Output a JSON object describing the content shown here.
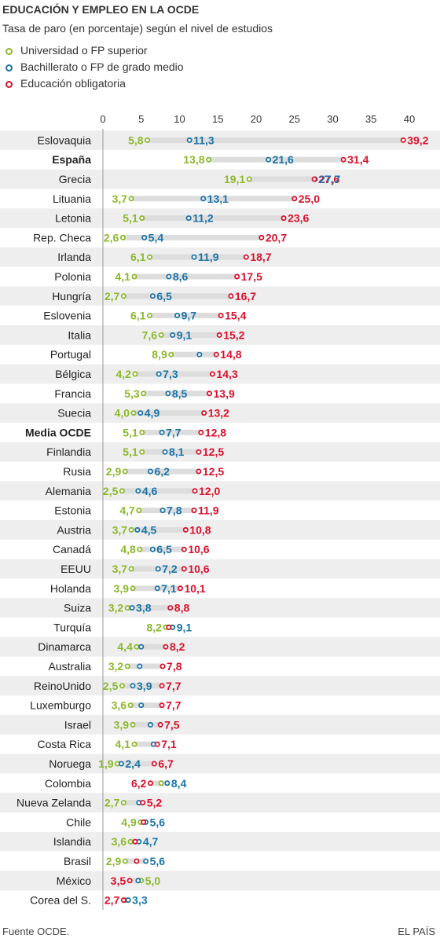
{
  "header": {
    "title": "EDUCACIÓN Y EMPLEO EN LA OCDE",
    "subtitle": "Tasa de paro (en porcentaje) según el nivel de estudios"
  },
  "legend": [
    {
      "label": "Universidad o FP superior",
      "color": "#8cb82c"
    },
    {
      "label": "Bachillerato o FP de grado medio",
      "color": "#1a73a8"
    },
    {
      "label": "Educación obligatoria",
      "color": "#d9102a"
    }
  ],
  "footer": {
    "source": "Fuente OCDE.",
    "brand": "EL PAÍS"
  },
  "chart_data": {
    "type": "dot-range",
    "xlim": [
      0,
      40
    ],
    "xticks": [
      "0",
      "5",
      "10",
      "15",
      "20",
      "25",
      "30",
      "35",
      "40"
    ],
    "stripe_color": "#eeeeee",
    "range_color": "#dddddd",
    "series": [
      {
        "name": "Universidad o FP superior",
        "color": "#8cb82c"
      },
      {
        "name": "Bachillerato o FP de grado medio",
        "color": "#1a73a8"
      },
      {
        "name": "Educación obligatoria",
        "color": "#d9102a"
      }
    ],
    "rows": [
      {
        "country": "Eslovaquia",
        "bold": false,
        "values": [
          5.8,
          11.3,
          39.2
        ],
        "labels": [
          "5,8",
          "11,3",
          "39,2"
        ]
      },
      {
        "country": "España",
        "bold": true,
        "values": [
          13.8,
          21.6,
          31.4
        ],
        "labels": [
          "13,8",
          "21,6",
          "31,4"
        ]
      },
      {
        "country": "Grecia",
        "bold": false,
        "values": [
          19.1,
          27.7,
          27.6
        ],
        "labels": [
          "19,1",
          "27,7",
          "27,6"
        ]
      },
      {
        "country": "Lituania",
        "bold": false,
        "values": [
          3.7,
          13.1,
          25.0
        ],
        "labels": [
          "3,7",
          "13,1",
          "25,0"
        ]
      },
      {
        "country": "Letonia",
        "bold": false,
        "values": [
          5.1,
          11.2,
          23.6
        ],
        "labels": [
          "5,1",
          "11,2",
          "23,6"
        ]
      },
      {
        "country": "Rep. Checa",
        "bold": false,
        "values": [
          2.6,
          5.4,
          20.7
        ],
        "labels": [
          "2,6",
          "5,4",
          "20,7"
        ]
      },
      {
        "country": "Irlanda",
        "bold": false,
        "values": [
          6.1,
          11.9,
          18.7
        ],
        "labels": [
          "6,1",
          "11,9",
          "18,7"
        ]
      },
      {
        "country": "Polonia",
        "bold": false,
        "values": [
          4.1,
          8.6,
          17.5
        ],
        "labels": [
          "4,1",
          "8,6",
          "17,5"
        ]
      },
      {
        "country": "Hungría",
        "bold": false,
        "values": [
          2.7,
          6.5,
          16.7
        ],
        "labels": [
          "2,7",
          "6,5",
          "16,7"
        ]
      },
      {
        "country": "Eslovenia",
        "bold": false,
        "values": [
          6.1,
          9.7,
          15.4
        ],
        "labels": [
          "6,1",
          "9,7",
          "15,4"
        ]
      },
      {
        "country": "Italia",
        "bold": false,
        "values": [
          7.6,
          9.1,
          15.2
        ],
        "labels": [
          "7,6",
          "9,1",
          "15,2"
        ]
      },
      {
        "country": "Portugal",
        "bold": false,
        "values": [
          8.9,
          12.6,
          14.8
        ],
        "labels": [
          "8,9",
          "",
          "14,8"
        ]
      },
      {
        "country": "Bélgica",
        "bold": false,
        "values": [
          4.2,
          7.3,
          14.3
        ],
        "labels": [
          "4,2",
          "7,3",
          "14,3"
        ]
      },
      {
        "country": "Francia",
        "bold": false,
        "values": [
          5.3,
          8.5,
          13.9
        ],
        "labels": [
          "5,3",
          "8,5",
          "13,9"
        ]
      },
      {
        "country": "Suecia",
        "bold": false,
        "values": [
          4.0,
          4.9,
          13.2
        ],
        "labels": [
          "4,0",
          "4,9",
          "13,2"
        ]
      },
      {
        "country": "Media OCDE",
        "bold": true,
        "values": [
          5.1,
          7.7,
          12.8
        ],
        "labels": [
          "5,1",
          "7,7",
          "12,8"
        ]
      },
      {
        "country": "Finlandia",
        "bold": false,
        "values": [
          5.1,
          8.1,
          12.5
        ],
        "labels": [
          "5,1",
          "8,1",
          "12,5"
        ]
      },
      {
        "country": "Rusia",
        "bold": false,
        "values": [
          2.9,
          6.2,
          12.5
        ],
        "labels": [
          "2,9",
          "6,2",
          "12,5"
        ]
      },
      {
        "country": "Alemania",
        "bold": false,
        "values": [
          2.5,
          4.6,
          12.0
        ],
        "labels": [
          "2,5",
          "4,6",
          "12,0"
        ]
      },
      {
        "country": "Estonia",
        "bold": false,
        "values": [
          4.7,
          7.8,
          11.9
        ],
        "labels": [
          "4,7",
          "7,8",
          "11,9"
        ]
      },
      {
        "country": "Austria",
        "bold": false,
        "values": [
          3.7,
          4.5,
          10.8
        ],
        "labels": [
          "3,7",
          "4,5",
          "10,8"
        ]
      },
      {
        "country": "Canadá",
        "bold": false,
        "values": [
          4.8,
          6.5,
          10.6
        ],
        "labels": [
          "4,8",
          "6,5",
          "10,6"
        ]
      },
      {
        "country": "EEUU",
        "bold": false,
        "values": [
          3.7,
          7.2,
          10.6
        ],
        "labels": [
          "3,7",
          "7,2",
          "10,6"
        ]
      },
      {
        "country": "Holanda",
        "bold": false,
        "values": [
          3.9,
          7.1,
          10.1
        ],
        "labels": [
          "3,9",
          "7,1",
          "10,1"
        ]
      },
      {
        "country": "Suiza",
        "bold": false,
        "values": [
          3.2,
          3.8,
          8.8
        ],
        "labels": [
          "3,2",
          "3,8",
          "8,8"
        ]
      },
      {
        "country": "Turquía",
        "bold": false,
        "values": [
          8.2,
          9.1,
          8.6
        ],
        "labels": [
          "8,2",
          "9,1",
          ""
        ]
      },
      {
        "country": "Dinamarca",
        "bold": false,
        "values": [
          4.4,
          5.0,
          8.2
        ],
        "labels": [
          "4,4",
          "",
          "8,2"
        ]
      },
      {
        "country": "Australia",
        "bold": false,
        "values": [
          3.2,
          4.8,
          7.8
        ],
        "labels": [
          "3,2",
          "",
          "7,8"
        ]
      },
      {
        "country": "ReinoUnido",
        "bold": false,
        "values": [
          2.5,
          3.9,
          7.7
        ],
        "labels": [
          "2,5",
          "3,9",
          "7,7"
        ]
      },
      {
        "country": "Luxemburgo",
        "bold": false,
        "values": [
          3.6,
          5.0,
          7.7
        ],
        "labels": [
          "3,6",
          "",
          "7,7"
        ]
      },
      {
        "country": "Israel",
        "bold": false,
        "values": [
          3.9,
          6.2,
          7.5
        ],
        "labels": [
          "3,9",
          "",
          "7,5"
        ]
      },
      {
        "country": "Costa Rica",
        "bold": false,
        "values": [
          4.1,
          6.6,
          7.1
        ],
        "labels": [
          "4,1",
          "",
          "7,1"
        ]
      },
      {
        "country": "Noruega",
        "bold": false,
        "values": [
          1.9,
          2.4,
          6.7
        ],
        "labels": [
          "1,9",
          "2,4",
          "6,7"
        ]
      },
      {
        "country": "Colombia",
        "bold": false,
        "values": [
          7.6,
          8.4,
          6.2
        ],
        "labels": [
          "",
          "8,4",
          "6,2"
        ]
      },
      {
        "country": "Nueva Zelanda",
        "bold": false,
        "values": [
          2.7,
          4.7,
          5.2
        ],
        "labels": [
          "2,7",
          "",
          "5,2"
        ]
      },
      {
        "country": "Chile",
        "bold": false,
        "values": [
          4.9,
          5.6,
          5.3
        ],
        "labels": [
          "4,9",
          "5,6",
          ""
        ]
      },
      {
        "country": "Islandia",
        "bold": false,
        "values": [
          3.6,
          4.7,
          4.2
        ],
        "labels": [
          "3,6",
          "4,7",
          ""
        ]
      },
      {
        "country": "Brasil",
        "bold": false,
        "values": [
          2.9,
          5.6,
          4.4
        ],
        "labels": [
          "2,9",
          "5,6",
          ""
        ]
      },
      {
        "country": "México",
        "bold": false,
        "values": [
          5.0,
          4.6,
          3.5
        ],
        "labels": [
          "5,0",
          "",
          "3,5"
        ]
      },
      {
        "country": "Corea del S.",
        "bold": false,
        "values": [
          3.0,
          3.3,
          2.7
        ],
        "labels": [
          "",
          "3,3",
          "2,7"
        ]
      }
    ]
  }
}
